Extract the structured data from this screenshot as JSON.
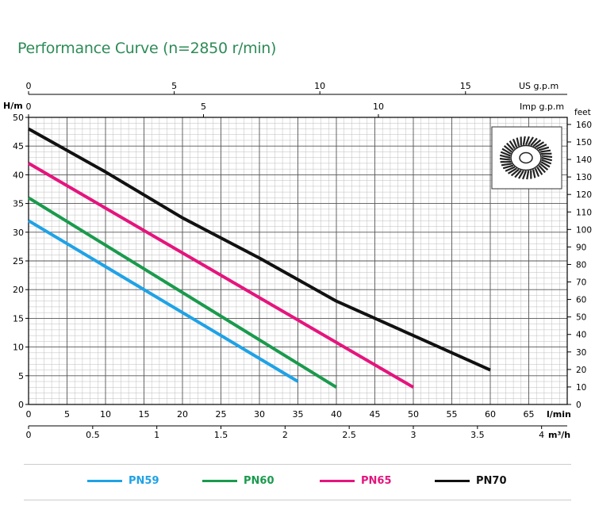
{
  "chart_data": {
    "type": "line",
    "title": "Performance Curve (n=2850 r/min)",
    "y_left": {
      "label": "H/m",
      "ticks": [
        "50",
        "45",
        "40",
        "35",
        "30",
        "25",
        "20",
        "15",
        "10",
        "5",
        "0"
      ],
      "range": [
        0,
        50
      ]
    },
    "y_right": {
      "label": "feet",
      "ticks": [
        "160",
        "150",
        "140",
        "130",
        "120",
        "110",
        "100",
        "90",
        "80",
        "70",
        "60",
        "50",
        "40",
        "30",
        "20",
        "10",
        "0"
      ],
      "values": [
        160,
        150,
        140,
        130,
        120,
        110,
        100,
        90,
        80,
        70,
        60,
        50,
        40,
        30,
        20,
        10,
        0
      ]
    },
    "x_lmin": {
      "label": "l/min",
      "ticks": [
        "0",
        "5",
        "10",
        "15",
        "20",
        "25",
        "30",
        "35",
        "40",
        "45",
        "50",
        "55",
        "60",
        "65"
      ],
      "range": [
        0,
        70
      ]
    },
    "x_m3h": {
      "label": "m³/h",
      "ticks": [
        "0",
        "0.5",
        "1",
        "1.5",
        "2",
        "2.5",
        "3",
        "3.5",
        "4"
      ],
      "values": [
        0,
        0.5,
        1,
        1.5,
        2,
        2.5,
        3,
        3.5,
        4
      ]
    },
    "x_us": {
      "label": "US g.p.m",
      "ticks": [
        "0",
        "5",
        "10",
        "15"
      ],
      "values": [
        0,
        5,
        10,
        15
      ]
    },
    "x_imp": {
      "label": "Imp g.p.m",
      "ticks": [
        "0",
        "5",
        "10"
      ],
      "values": [
        0,
        5,
        10
      ]
    },
    "series": [
      {
        "name": "PN59",
        "color": "#1fa2e6",
        "points": [
          [
            0,
            32
          ],
          [
            35,
            4
          ]
        ]
      },
      {
        "name": "PN60",
        "color": "#1a9a4d",
        "points": [
          [
            0,
            36
          ],
          [
            40,
            3
          ]
        ]
      },
      {
        "name": "PN65",
        "color": "#e5147d",
        "points": [
          [
            0,
            42
          ],
          [
            50,
            3
          ]
        ]
      },
      {
        "name": "PN70",
        "color": "#111111",
        "points": [
          [
            0,
            48
          ],
          [
            10,
            40.5
          ],
          [
            20,
            32.5
          ],
          [
            30,
            25.5
          ],
          [
            40,
            18
          ],
          [
            50,
            12
          ],
          [
            60,
            6
          ]
        ]
      }
    ],
    "grid": true,
    "legend": "bottom"
  }
}
